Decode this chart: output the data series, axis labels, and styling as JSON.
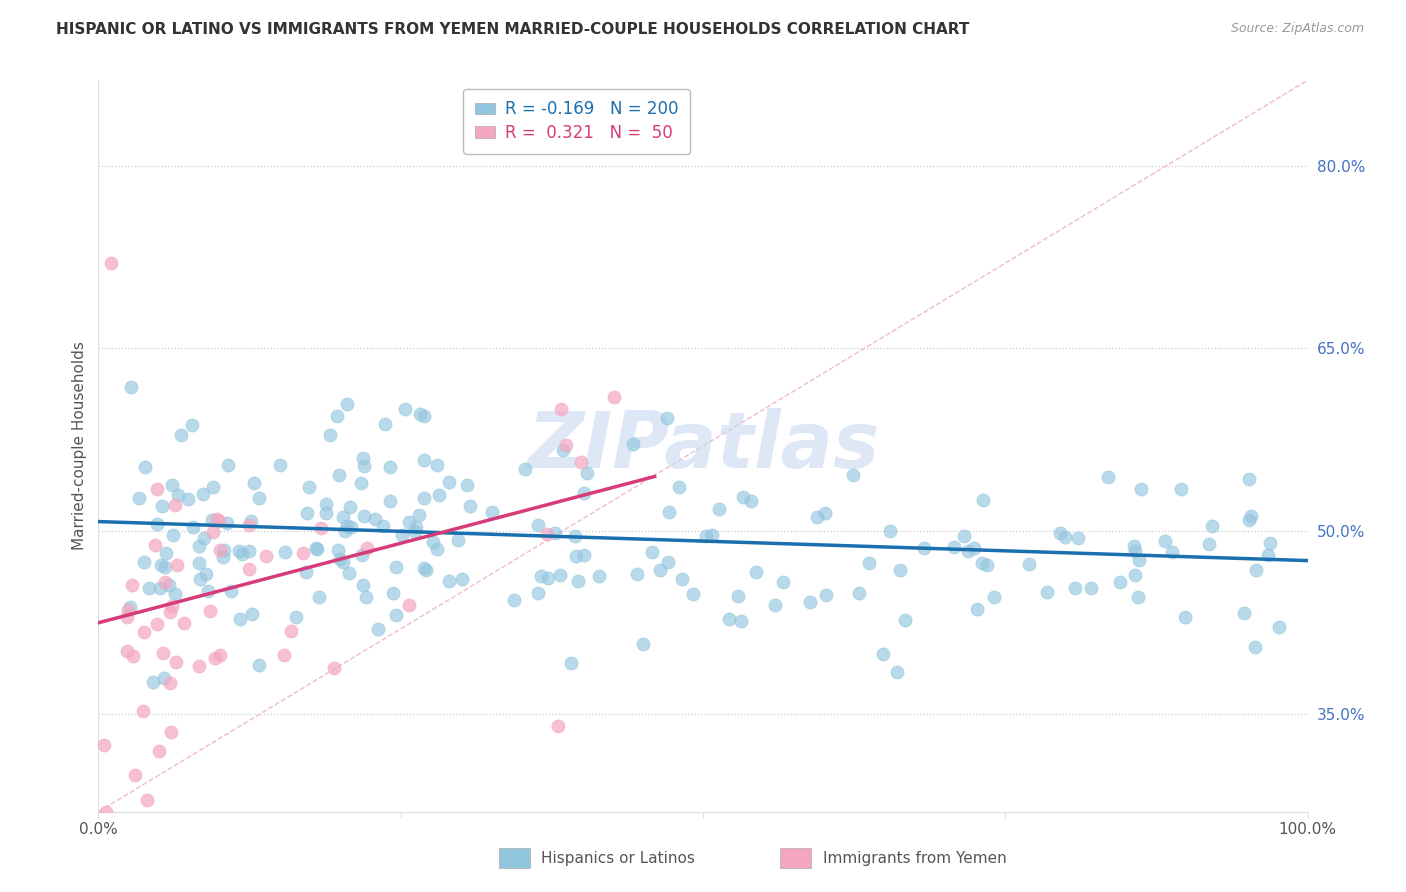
{
  "title": "HISPANIC OR LATINO VS IMMIGRANTS FROM YEMEN MARRIED-COUPLE HOUSEHOLDS CORRELATION CHART",
  "source": "Source: ZipAtlas.com",
  "ylabel": "Married-couple Households",
  "legend_blue_R": "-0.169",
  "legend_blue_N": "200",
  "legend_pink_R": "0.321",
  "legend_pink_N": "50",
  "legend_label_blue": "Hispanics or Latinos",
  "legend_label_pink": "Immigrants from Yemen",
  "xlim": [
    0.0,
    1.0
  ],
  "ylim": [
    0.27,
    0.87
  ],
  "ytick_labels_right": [
    "35.0%",
    "50.0%",
    "65.0%",
    "80.0%"
  ],
  "ytick_positions_right": [
    0.35,
    0.5,
    0.65,
    0.8
  ],
  "color_blue": "#92c5de",
  "color_pink": "#f4a6c0",
  "color_blue_line": "#1a6faf",
  "color_pink_line": "#d63b7a",
  "color_diag": "#f4a6c0",
  "watermark": "ZIPatlas",
  "background_color": "#ffffff",
  "blue_trend_x0": 0.0,
  "blue_trend_x1": 1.0,
  "blue_trend_y0": 0.508,
  "blue_trend_y1": 0.476,
  "pink_trend_x0": 0.0,
  "pink_trend_x1": 0.46,
  "pink_trend_y0": 0.425,
  "pink_trend_y1": 0.545
}
